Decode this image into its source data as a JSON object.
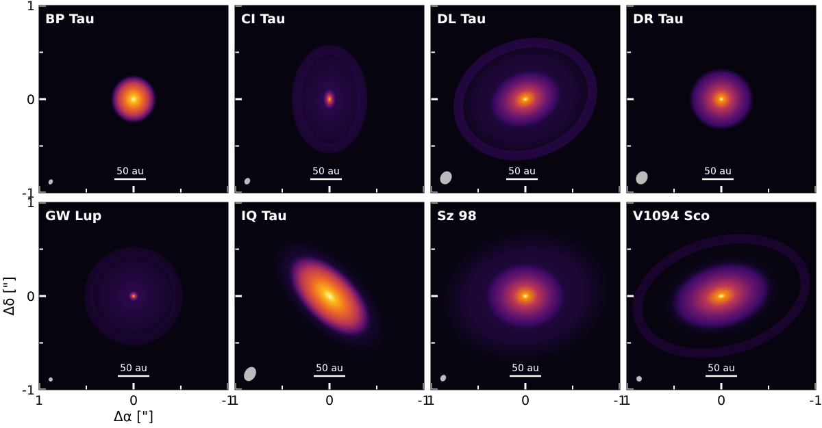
{
  "figure": {
    "panels": [
      {
        "label": "BP Tau",
        "scale_bar": "50 au"
      },
      {
        "label": "CI Tau",
        "scale_bar": "50 au"
      },
      {
        "label": "DL Tau",
        "scale_bar": "50 au"
      },
      {
        "label": "DR Tau",
        "scale_bar": "50 au"
      },
      {
        "label": "GW Lup",
        "scale_bar": "50 au"
      },
      {
        "label": "IQ Tau",
        "scale_bar": "50 au"
      },
      {
        "label": "Sz 98",
        "scale_bar": "50 au"
      },
      {
        "label": "V1094 Sco",
        "scale_bar": "50 au"
      }
    ],
    "xlabel": "Δα [\"]",
    "ylabel": "Δδ [\"]",
    "xlim": [
      1,
      -1
    ],
    "ylim": [
      -1,
      1
    ],
    "xticks": [
      1,
      0,
      -1
    ],
    "yticks": [
      -1,
      0,
      1
    ],
    "minor_ticks": [
      -0.5,
      0.5
    ]
  }
}
